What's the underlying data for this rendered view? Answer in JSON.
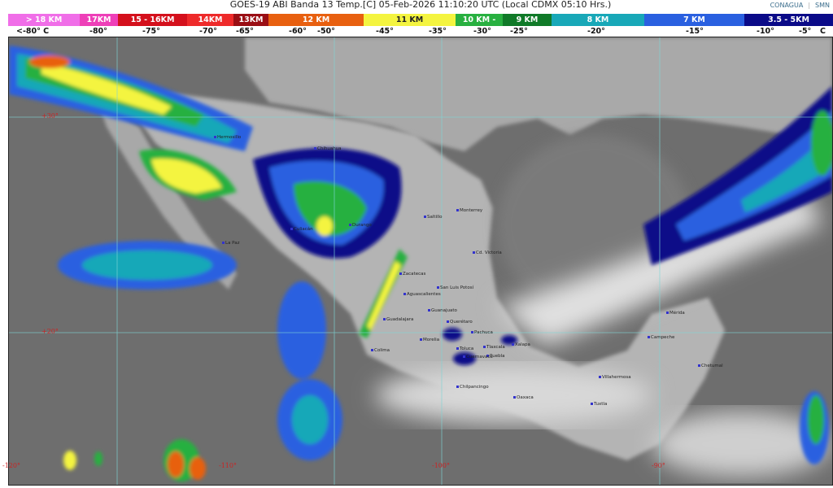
{
  "title": "GOES-19 ABI Banda 13 Temp.[C] 05-Feb-2026 11:10:20 UTC (Local CDMX  05:10 Hrs.)",
  "logos": {
    "conagua": "CONAGUA",
    "smn": "SMN"
  },
  "legend": [
    {
      "label": "> 18 KM",
      "color": "#f06ee8"
    },
    {
      "label": "17KM",
      "color": "#ee3fb8"
    },
    {
      "label": "15 - 16KM",
      "color": "#d4101c"
    },
    {
      "label": "14KM",
      "color": "#ee2a2a"
    },
    {
      "label": "13KM",
      "color": "#9a0e14"
    },
    {
      "label": "12 KM",
      "color": "#e86010"
    },
    {
      "label": "11 KM",
      "color": "#f4f440"
    },
    {
      "label": "10 KM -",
      "color": "#28b040"
    },
    {
      "label": "9 KM",
      "color": "#107a28"
    },
    {
      "label": "8 KM",
      "color": "#18a8b8"
    },
    {
      "label": "7 KM",
      "color": "#2a60e0"
    },
    {
      "label": "3.5 - 5KM",
      "color": "#0a0a88"
    }
  ],
  "temps": [
    "<-80° C",
    "-80°",
    "-75°",
    "-70°",
    "-65°",
    "-60°",
    "-50°",
    "-45°",
    "-35°",
    "-30°",
    "-25°",
    "-20°",
    "-15°",
    "-10°",
    "-5°",
    "C"
  ],
  "grid": {
    "lat": [
      "+30°",
      "+20°"
    ],
    "lon": [
      "-120°",
      "-110°",
      "-100°",
      "-90°"
    ]
  },
  "cities": [
    "Hermosillo",
    "Chihuahua",
    "La Paz",
    "Culiacán",
    "Durango",
    "Saltillo",
    "Monterrey",
    "Cd. Victoria",
    "Zacatecas",
    "San Luis Potosí",
    "Aguascalientes",
    "Guadalajara",
    "Guanajuato",
    "Querétaro",
    "Pachuca",
    "Morelia",
    "Colima",
    "Toluca",
    "Tlaxcala",
    "Xalapa",
    "Puebla",
    "Cuernavaca",
    "Chilpancingo",
    "Oaxaca",
    "Villahermosa",
    "Tuxtla",
    "Campeche",
    "Mérida",
    "Chetumal"
  ]
}
